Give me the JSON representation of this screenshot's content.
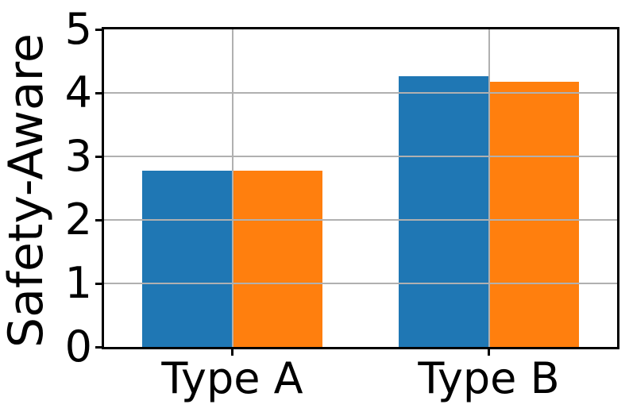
{
  "chart_data": {
    "type": "bar",
    "title": "",
    "ylabel": "Safety-Aware",
    "xlabel": "",
    "categories": [
      "Type A",
      "Type B"
    ],
    "series": [
      {
        "name": "blue",
        "color": "#1f77b4",
        "values": [
          2.78,
          4.26
        ]
      },
      {
        "name": "orange",
        "color": "#ff7f0e",
        "values": [
          2.77,
          4.17
        ]
      }
    ],
    "ylim": [
      0,
      5
    ],
    "yticks": [
      0,
      1,
      2,
      3,
      4,
      5
    ],
    "bar_width_units": 0.35,
    "grid": true,
    "grid_on_top": true,
    "legend": null
  },
  "colors": {
    "grid": "#b0b0b0",
    "axis": "#000000",
    "text": "#000000",
    "background": "#ffffff"
  }
}
